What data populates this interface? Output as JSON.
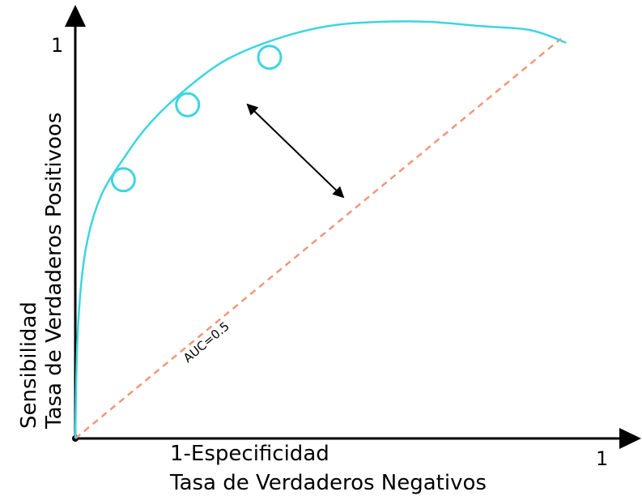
{
  "chart_data": {
    "type": "line",
    "xlabel_line1": "1-Especificidad",
    "xlabel_line2": "Tasa de Verdaderos Negativos",
    "ylabel_line1": "Sensibilidad",
    "ylabel_line2": "Tasa de Verdaderos Positivoos",
    "x_tick_label": "1",
    "y_tick_label": "1",
    "xlim": [
      0,
      1
    ],
    "ylim": [
      0,
      1
    ],
    "grid": false,
    "series": [
      {
        "kind": "roc-curve",
        "color": "#3dd5e0",
        "x": [
          0,
          0.005,
          0.02,
          0.05,
          0.1,
          0.15,
          0.22,
          0.3,
          0.4,
          0.5,
          0.6,
          0.7,
          0.8,
          0.9,
          0.97
        ],
        "y": [
          0,
          0.26,
          0.45,
          0.58,
          0.68,
          0.76,
          0.84,
          0.91,
          0.96,
          0.99,
          1.0,
          1.0,
          0.99,
          0.98,
          0.95
        ]
      },
      {
        "kind": "random-reference",
        "label": "AUC=0.5",
        "color": "#f0987a",
        "x": [
          0,
          0.96
        ],
        "y": [
          0,
          0.96
        ]
      }
    ],
    "markers": [
      {
        "x": 0.095,
        "y": 0.621,
        "color": "#3dd5e0"
      },
      {
        "x": 0.222,
        "y": 0.801,
        "color": "#3dd5e0"
      },
      {
        "x": 0.384,
        "y": 0.915,
        "color": "#3dd5e0"
      }
    ],
    "double_arrow": {
      "from": {
        "x": 0.34,
        "y": 0.802
      },
      "to": {
        "x": 0.53,
        "y": 0.579
      }
    }
  }
}
